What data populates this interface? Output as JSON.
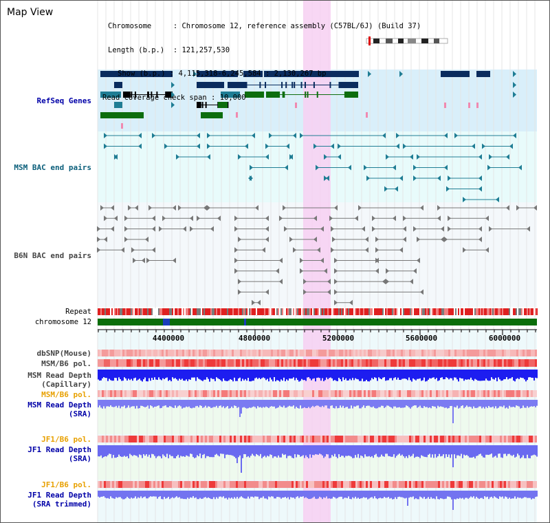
{
  "view_title": "Map View",
  "info": {
    "chromosome_label": "Chromosome",
    "chromosome_value": "Chromosome 12, reference assembly (C57BL/6J) (Build 37)",
    "length_label": "Length (b.p.)",
    "length_value": "121,257,530",
    "show_label": "Show (b.p.)",
    "show_value": "4,115,318-6,245,584 : 2,130,267 bp",
    "coverage_label": "Read coverage check span",
    "coverage_value": "10,000"
  },
  "tracks": {
    "refseq": "RefSeq Genes",
    "msm_bac": "MSM BAC end pairs",
    "b6n_bac": "B6N BAC end pairs",
    "repeat": "Repeat",
    "chromosome": "chromosome 12",
    "dbsnp": "dbSNP(Mouse)",
    "msm_b6_pol_1": "MSM/B6 pol.",
    "msm_depth_cap_1": "MSM Read Depth",
    "msm_depth_cap_2": "(Capillary)",
    "msm_b6_pol_2": "MSM/B6 pol.",
    "msm_depth_sra_1": "MSM Read Depth",
    "msm_depth_sra_2": "(SRA)",
    "jf1_b6_pol_1": "JF1/B6 pol.",
    "jf1_depth_sra_1": "JF1 Read Depth",
    "jf1_depth_sra_2": "(SRA)",
    "jf1_b6_pol_2": "JF1/B6 pol.",
    "jf1_depth_trim_1": "JF1 Read Depth",
    "jf1_depth_trim_2": "(SRA trimmed)"
  },
  "axis": {
    "ticks": [
      "4400000",
      "4800000",
      "5200000",
      "5600000",
      "6000000"
    ]
  },
  "colors": {
    "highlight": "#f7d0f2",
    "refseq_bg": "#d9effa",
    "bac_bg": "#e8fbfb",
    "navy": "#0a2c5e",
    "green": "#0d6d0d",
    "teal": "#1f7d94",
    "label_blue": "#0000a8",
    "label_teal": "#0a5e7a",
    "label_orange": "#e8a000",
    "label_gray": "#444444"
  }
}
